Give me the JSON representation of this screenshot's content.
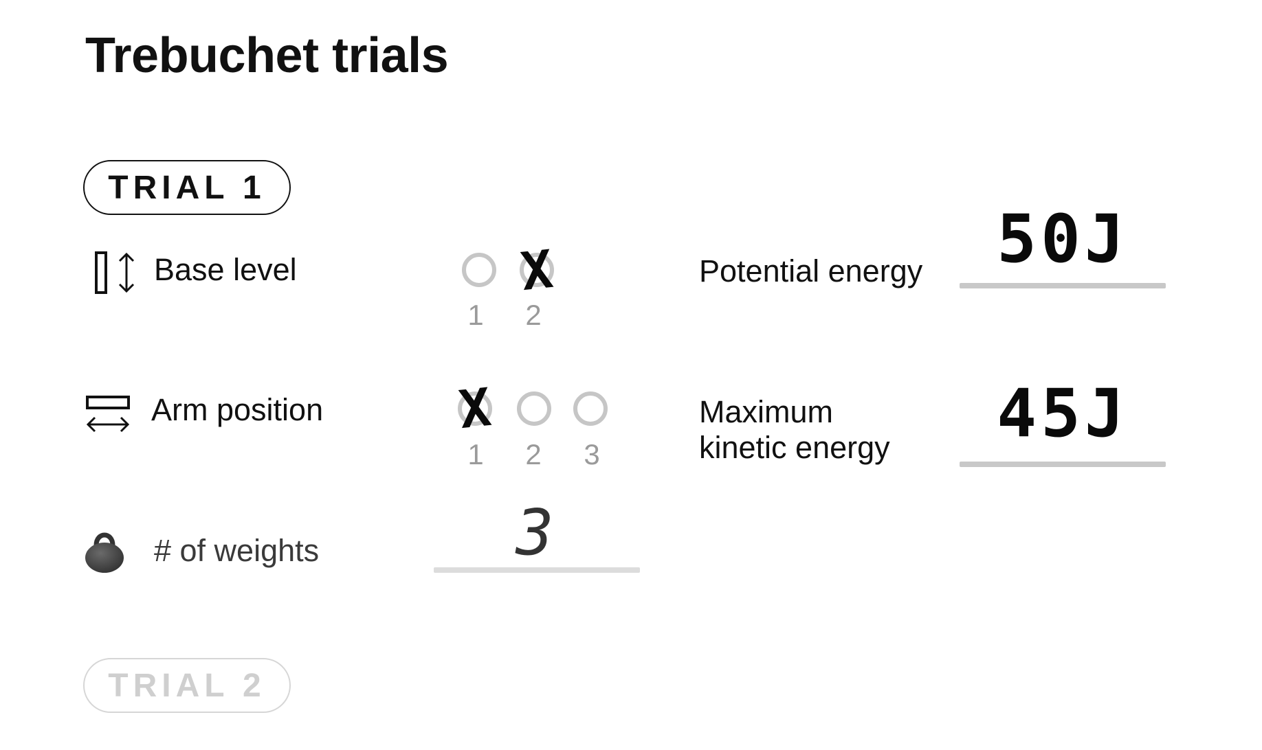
{
  "title": "Trebuchet trials",
  "trials": [
    {
      "label": "TRIAL 1",
      "state": "active"
    },
    {
      "label": "TRIAL 2",
      "state": "inactive"
    }
  ],
  "rows": {
    "base_level": {
      "label": "Base level",
      "icon": "base-level-icon",
      "options": [
        "1",
        "2"
      ],
      "selected": "2"
    },
    "arm_position": {
      "label": "Arm position",
      "icon": "arm-position-icon",
      "options": [
        "1",
        "2",
        "3"
      ],
      "selected": "1"
    },
    "weights": {
      "label": "# of weights",
      "icon": "weight-icon",
      "value": "3"
    }
  },
  "results": {
    "potential_energy": {
      "label": "Potential energy",
      "value": "50J"
    },
    "max_kinetic_energy": {
      "label_line1": "Maximum",
      "label_line2": "kinetic energy",
      "value": "45J"
    }
  },
  "mark_glyph": "X",
  "colors": {
    "text": "#111111",
    "radio_border": "#c6c6c6",
    "number_gray": "#9a9a9a",
    "underline": "#c8c8c8",
    "inactive_pill": "#d6d6d6"
  }
}
